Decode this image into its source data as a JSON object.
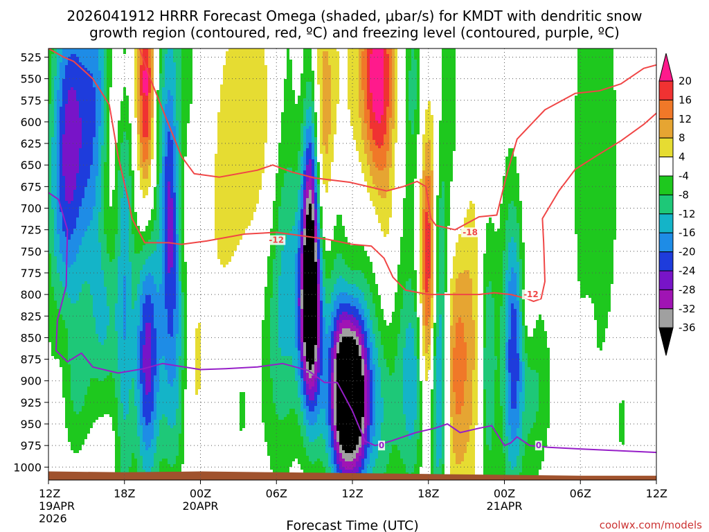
{
  "chart_data": {
    "type": "heatmap",
    "title_lines": [
      "2026041912 HRRR Forecast Omega (shaded, μbar/s) for KMDT with dendritic snow",
      "growth region (contoured, red, ºC) and freezing level (contoured, purple, ºC)"
    ],
    "xlabel": "Forecast Time (UTC)",
    "ylabel": "",
    "credit": "coolwx.com/models",
    "x_range_hours": [
      0,
      48
    ],
    "x_ticks": [
      {
        "hour": 0,
        "label": "12Z",
        "sub1": "19APR",
        "sub2": "2026"
      },
      {
        "hour": 6,
        "label": "18Z",
        "sub1": "",
        "sub2": ""
      },
      {
        "hour": 12,
        "label": "00Z",
        "sub1": "20APR",
        "sub2": ""
      },
      {
        "hour": 18,
        "label": "06Z",
        "sub1": "",
        "sub2": ""
      },
      {
        "hour": 24,
        "label": "12Z",
        "sub1": "",
        "sub2": ""
      },
      {
        "hour": 30,
        "label": "18Z",
        "sub1": "",
        "sub2": ""
      },
      {
        "hour": 36,
        "label": "00Z",
        "sub1": "21APR",
        "sub2": ""
      },
      {
        "hour": 42,
        "label": "06Z",
        "sub1": "",
        "sub2": ""
      },
      {
        "hour": 48,
        "label": "12Z",
        "sub1": "",
        "sub2": ""
      }
    ],
    "y_range_mb": [
      515,
      1015
    ],
    "y_ticks": [
      525,
      550,
      575,
      600,
      625,
      650,
      675,
      700,
      725,
      750,
      775,
      800,
      825,
      850,
      875,
      900,
      925,
      950,
      975,
      1000
    ],
    "ground_level_mb": [
      [
        0,
        1005
      ],
      [
        6,
        1006
      ],
      [
        12,
        1005
      ],
      [
        18,
        1006
      ],
      [
        24,
        1007
      ],
      [
        30,
        1008
      ],
      [
        36,
        1009
      ],
      [
        42,
        1010
      ],
      [
        48,
        1010
      ]
    ],
    "colorbar": {
      "labels": [
        "20",
        "16",
        "12",
        "8",
        "4",
        "-4",
        "-8",
        "-12",
        "-16",
        "-20",
        "-24",
        "-28",
        "-32",
        "-36"
      ],
      "bins": [
        {
          "lo": 20,
          "hi": 24,
          "color": "#ff1a8c"
        },
        {
          "lo": 16,
          "hi": 20,
          "color": "#f03232"
        },
        {
          "lo": 12,
          "hi": 16,
          "color": "#f07828"
        },
        {
          "lo": 8,
          "hi": 12,
          "color": "#e6a532"
        },
        {
          "lo": 4,
          "hi": 8,
          "color": "#e6dc32"
        },
        {
          "lo": -4,
          "hi": 4,
          "color": "#ffffff"
        },
        {
          "lo": -8,
          "hi": -4,
          "color": "#1ec81e"
        },
        {
          "lo": -12,
          "hi": -8,
          "color": "#1ec878"
        },
        {
          "lo": -16,
          "hi": -12,
          "color": "#14b4c8"
        },
        {
          "lo": -20,
          "hi": -16,
          "color": "#1e8ce6"
        },
        {
          "lo": -24,
          "hi": -20,
          "color": "#1e3cdc"
        },
        {
          "lo": -28,
          "hi": -24,
          "color": "#7814c8"
        },
        {
          "lo": -32,
          "hi": -28,
          "color": "#a014b4"
        },
        {
          "lo": -36,
          "hi": -32,
          "color": "#a0a0a0"
        },
        {
          "lo": -40,
          "hi": -36,
          "color": "#000000"
        }
      ]
    },
    "omega_features": [
      {
        "t": 1.0,
        "p": 740,
        "st": 0.9,
        "sp": 150,
        "amp": -9
      },
      {
        "t": 1.2,
        "p": 870,
        "st": 0.6,
        "sp": 70,
        "amp": 7
      },
      {
        "t": 1.8,
        "p": 610,
        "st": 1.0,
        "sp": 130,
        "amp": -21
      },
      {
        "t": 2.2,
        "p": 900,
        "st": 0.9,
        "sp": 60,
        "amp": -8
      },
      {
        "t": 3.8,
        "p": 600,
        "st": 0.9,
        "sp": 140,
        "amp": -18
      },
      {
        "t": 4.6,
        "p": 680,
        "st": 0.7,
        "sp": 80,
        "amp": 6
      },
      {
        "t": 4.5,
        "p": 830,
        "st": 0.8,
        "sp": 70,
        "amp": -10
      },
      {
        "t": 5.7,
        "p": 560,
        "st": 0.7,
        "sp": 50,
        "amp": 6
      },
      {
        "t": 6.0,
        "p": 780,
        "st": 0.5,
        "sp": 230,
        "amp": -14
      },
      {
        "t": 7.7,
        "p": 560,
        "st": 0.5,
        "sp": 110,
        "amp": 23
      },
      {
        "t": 7.8,
        "p": 870,
        "st": 0.7,
        "sp": 110,
        "amp": -26
      },
      {
        "t": 9.5,
        "p": 560,
        "st": 1.0,
        "sp": 130,
        "amp": -9
      },
      {
        "t": 9.6,
        "p": 700,
        "st": 0.5,
        "sp": 100,
        "amp": -17
      },
      {
        "t": 9.9,
        "p": 880,
        "st": 0.8,
        "sp": 110,
        "amp": -14
      },
      {
        "t": 10.4,
        "p": 640,
        "st": 0.8,
        "sp": 90,
        "amp": 6
      },
      {
        "t": 11.5,
        "p": 860,
        "st": 0.7,
        "sp": 130,
        "amp": 6
      },
      {
        "t": 11.0,
        "p": 620,
        "st": 1.2,
        "sp": 130,
        "amp": -6
      },
      {
        "t": 14.2,
        "p": 700,
        "st": 1.3,
        "sp": 120,
        "amp": 6
      },
      {
        "t": 15.5,
        "p": 680,
        "st": 1.5,
        "sp": 220,
        "amp": 5
      },
      {
        "t": 15.2,
        "p": 870,
        "st": 1.2,
        "sp": 140,
        "amp": -8
      },
      {
        "t": 17.6,
        "p": 630,
        "st": 1.0,
        "sp": 130,
        "amp": 7
      },
      {
        "t": 18.2,
        "p": 820,
        "st": 1.0,
        "sp": 130,
        "amp": -9
      },
      {
        "t": 19.0,
        "p": 700,
        "st": 1.2,
        "sp": 220,
        "amp": -13
      },
      {
        "t": 19.3,
        "p": 860,
        "st": 1.2,
        "sp": 180,
        "amp": 5
      },
      {
        "t": 20.7,
        "p": 720,
        "st": 0.5,
        "sp": 130,
        "amp": -35
      },
      {
        "t": 20.6,
        "p": 820,
        "st": 0.7,
        "sp": 70,
        "amp": -22
      },
      {
        "t": 21.5,
        "p": 560,
        "st": 1.6,
        "sp": 90,
        "amp": 10
      },
      {
        "t": 21.6,
        "p": 650,
        "st": 1.2,
        "sp": 80,
        "amp": 6
      },
      {
        "t": 22.8,
        "p": 760,
        "st": 0.6,
        "sp": 160,
        "amp": -10
      },
      {
        "t": 23.0,
        "p": 830,
        "st": 0.8,
        "sp": 90,
        "amp": 6
      },
      {
        "t": 22.5,
        "p": 900,
        "st": 1.4,
        "sp": 80,
        "amp": -11
      },
      {
        "t": 23.2,
        "p": 915,
        "st": 0.6,
        "sp": 70,
        "amp": -22
      },
      {
        "t": 24.2,
        "p": 915,
        "st": 0.7,
        "sp": 70,
        "amp": -30
      },
      {
        "t": 24.5,
        "p": 930,
        "st": 1.8,
        "sp": 70,
        "amp": -10
      },
      {
        "t": 25.9,
        "p": 545,
        "st": 1.0,
        "sp": 90,
        "amp": 20
      },
      {
        "t": 26.2,
        "p": 650,
        "st": 0.9,
        "sp": 160,
        "amp": 8
      },
      {
        "t": 26.3,
        "p": 820,
        "st": 1.4,
        "sp": 180,
        "amp": -11
      },
      {
        "t": 26.8,
        "p": 760,
        "st": 0.6,
        "sp": 120,
        "amp": 6
      },
      {
        "t": 28.8,
        "p": 560,
        "st": 0.6,
        "sp": 90,
        "amp": -9
      },
      {
        "t": 28.8,
        "p": 900,
        "st": 0.7,
        "sp": 90,
        "amp": -13
      },
      {
        "t": 30.0,
        "p": 770,
        "st": 0.5,
        "sp": 120,
        "amp": 23
      },
      {
        "t": 30.8,
        "p": 900,
        "st": 0.5,
        "sp": 110,
        "amp": -22
      },
      {
        "t": 30.9,
        "p": 720,
        "st": 0.5,
        "sp": 60,
        "amp": -6
      },
      {
        "t": 31.6,
        "p": 600,
        "st": 0.8,
        "sp": 130,
        "amp": -6
      },
      {
        "t": 32.2,
        "p": 880,
        "st": 0.8,
        "sp": 110,
        "amp": 14
      },
      {
        "t": 33.6,
        "p": 840,
        "st": 0.6,
        "sp": 150,
        "amp": 6
      },
      {
        "t": 34.7,
        "p": 880,
        "st": 0.5,
        "sp": 120,
        "amp": -12
      },
      {
        "t": 36.3,
        "p": 860,
        "st": 0.6,
        "sp": 160,
        "amp": -8
      },
      {
        "t": 36.8,
        "p": 860,
        "st": 0.5,
        "sp": 110,
        "amp": -14
      },
      {
        "t": 37.9,
        "p": 820,
        "st": 0.4,
        "sp": 40,
        "amp": 5
      },
      {
        "t": 38.2,
        "p": 910,
        "st": 1.1,
        "sp": 80,
        "amp": -9
      },
      {
        "t": 43.2,
        "p": 650,
        "st": 1.4,
        "sp": 190,
        "amp": -8
      },
      {
        "t": 42.7,
        "p": 850,
        "st": 0.3,
        "sp": 30,
        "amp": 5
      },
      {
        "t": 45.3,
        "p": 950,
        "st": 0.2,
        "sp": 25,
        "amp": -6
      }
    ],
    "dgz_contours": [
      {
        "label": "-12",
        "color": "#f04646",
        "points": [
          [
            0,
            515
          ],
          [
            1.2,
            525
          ],
          [
            2,
            530
          ],
          [
            3.5,
            550
          ],
          [
            4.8,
            580
          ],
          [
            5.5,
            640
          ],
          [
            6.3,
            690
          ],
          [
            6.6,
            712
          ],
          [
            7.6,
            740
          ],
          [
            9.5,
            740
          ],
          [
            10.5,
            742
          ],
          [
            12.5,
            738
          ],
          [
            14,
            734
          ],
          [
            15.5,
            730
          ],
          [
            18,
            728
          ],
          [
            19.0,
            730
          ],
          [
            20,
            732
          ],
          [
            22,
            736
          ],
          [
            24,
            742
          ],
          [
            25.5,
            744
          ],
          [
            26.5,
            758
          ],
          [
            27.2,
            780
          ],
          [
            28.2,
            795
          ],
          [
            30,
            800
          ],
          [
            32,
            800
          ],
          [
            34,
            800
          ],
          [
            35.2,
            798
          ],
          [
            36.5,
            800
          ],
          [
            37.8,
            805
          ],
          [
            38.3,
            808
          ],
          [
            38.9,
            805
          ],
          [
            39.2,
            785
          ],
          [
            39.1,
            740
          ],
          [
            39.0,
            712
          ],
          [
            40.3,
            680
          ],
          [
            41.6,
            655
          ],
          [
            43.2,
            640
          ],
          [
            45.2,
            622
          ],
          [
            47.0,
            603
          ],
          [
            48,
            590
          ]
        ]
      },
      {
        "label": "-18",
        "color": "#f04646",
        "points": [
          [
            7.2,
            515
          ],
          [
            7.9,
            545
          ],
          [
            9.0,
            585
          ],
          [
            10.5,
            640
          ],
          [
            11.5,
            660
          ],
          [
            13.5,
            664
          ],
          [
            16.5,
            656
          ],
          [
            17.7,
            650
          ],
          [
            19.2,
            658
          ],
          [
            21.0,
            665
          ],
          [
            23.8,
            670
          ],
          [
            26.7,
            680
          ],
          [
            28.0,
            675
          ],
          [
            29.1,
            669
          ],
          [
            29.8,
            675
          ],
          [
            30.2,
            712
          ],
          [
            30.6,
            720
          ],
          [
            32.1,
            725
          ],
          [
            34.0,
            710
          ],
          [
            35.4,
            708
          ],
          [
            36.2,
            660
          ],
          [
            37.0,
            620
          ],
          [
            39.2,
            586
          ],
          [
            41.6,
            567
          ],
          [
            43.5,
            564
          ],
          [
            45.2,
            556
          ],
          [
            47.0,
            538
          ],
          [
            48,
            534
          ]
        ]
      }
    ],
    "freezing_contour": {
      "label": "0",
      "color": "#961ec8",
      "points": [
        [
          0,
          682
        ],
        [
          0.8,
          690
        ],
        [
          1.5,
          725
        ],
        [
          1.4,
          790
        ],
        [
          0.7,
          830
        ],
        [
          0.6,
          865
        ],
        [
          1.5,
          878
        ],
        [
          2.6,
          868
        ],
        [
          3.5,
          884
        ],
        [
          5.5,
          891
        ],
        [
          7.5,
          886
        ],
        [
          9.0,
          880
        ],
        [
          12.0,
          887
        ],
        [
          14.0,
          886
        ],
        [
          16.5,
          884
        ],
        [
          18.5,
          880
        ],
        [
          20.5,
          888
        ],
        [
          21.8,
          902
        ],
        [
          22.8,
          902
        ],
        [
          24.0,
          935
        ],
        [
          25.0,
          970
        ],
        [
          25.8,
          975
        ],
        [
          27.0,
          970
        ],
        [
          29.0,
          960
        ],
        [
          30.5,
          955
        ],
        [
          31.5,
          950
        ],
        [
          32.5,
          960
        ],
        [
          34.0,
          955
        ],
        [
          35.0,
          952
        ],
        [
          36.0,
          975
        ],
        [
          36.5,
          972
        ],
        [
          37.0,
          965
        ],
        [
          38.0,
          975
        ],
        [
          39.5,
          977
        ],
        [
          42,
          979
        ],
        [
          45,
          981
        ],
        [
          48,
          983
        ]
      ]
    },
    "contour_labels": [
      {
        "contour": "dgz",
        "text": "-12",
        "t": 18.0,
        "p": 737
      },
      {
        "contour": "dgz",
        "text": "-18",
        "t": 33.3,
        "p": 728
      },
      {
        "contour": "dgz",
        "text": "-12",
        "t": 38.1,
        "p": 800
      },
      {
        "contour": "freeze",
        "text": "0",
        "t": 26.3,
        "p": 975
      },
      {
        "contour": "freeze",
        "text": "0",
        "t": 38.7,
        "p": 975
      }
    ]
  }
}
